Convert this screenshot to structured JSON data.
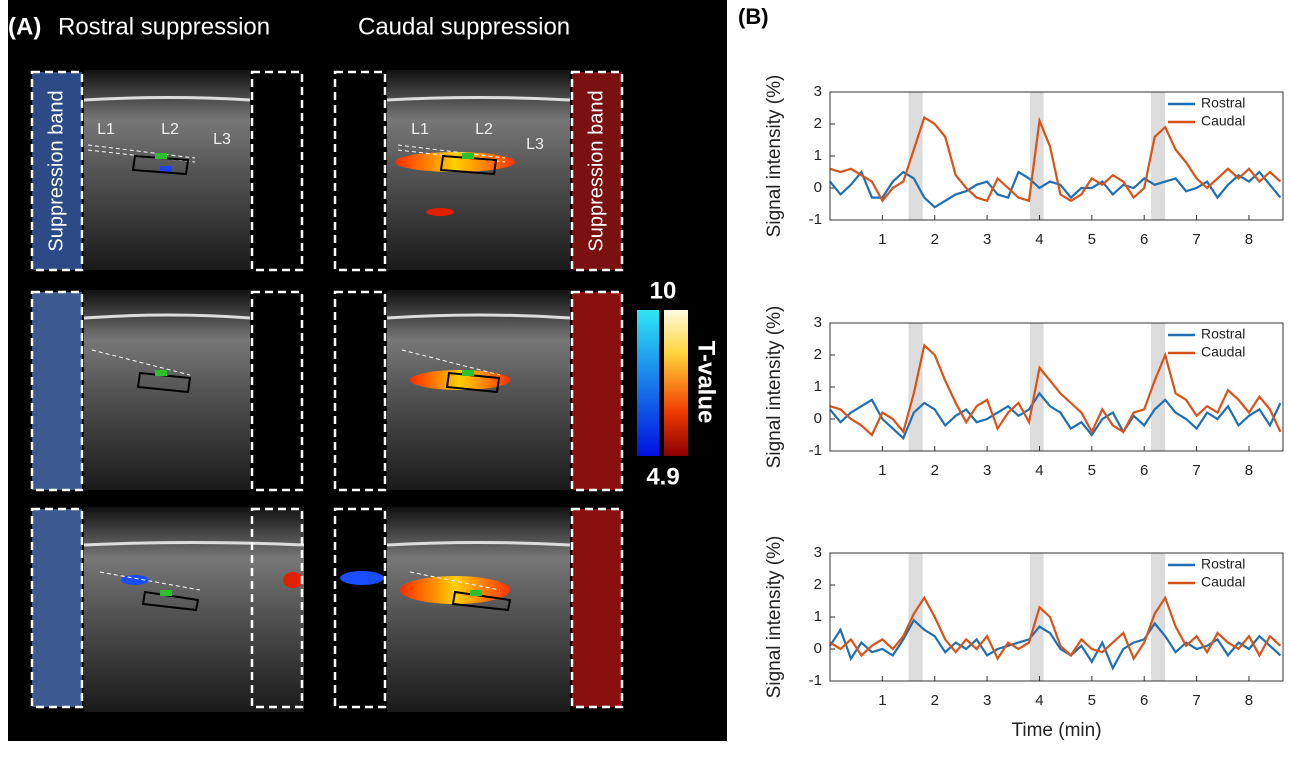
{
  "panel_a": {
    "label": "(A)",
    "titles": [
      "Rostral suppression",
      "Caudal suppression"
    ],
    "band_labels": [
      "Suppression band",
      "Suppression band"
    ],
    "levels": [
      [
        "L1",
        "L2",
        "L3"
      ],
      [
        "L1",
        "L2",
        "L3"
      ]
    ],
    "colorbar": {
      "label": "T-value",
      "range": [
        4.9,
        10
      ]
    }
  },
  "panel_b_label": "(B)",
  "chart_data": [
    {
      "type": "line",
      "ylabel": "Signal intensity (%)",
      "xlim": [
        0,
        8.65
      ],
      "ylim": [
        -1,
        3
      ],
      "xticks": [
        1,
        2,
        3,
        4,
        5,
        6,
        7,
        8
      ],
      "yticks": [
        -1,
        0,
        1,
        2,
        3
      ],
      "legend": "upper right",
      "shaded": [
        [
          1.5,
          1.77
        ],
        [
          3.82,
          4.08
        ],
        [
          6.13,
          6.4
        ]
      ],
      "x": [
        0,
        0.2,
        0.4,
        0.6,
        0.8,
        1.0,
        1.2,
        1.4,
        1.6,
        1.8,
        2.0,
        2.2,
        2.4,
        2.6,
        2.8,
        3.0,
        3.2,
        3.4,
        3.6,
        3.8,
        4.0,
        4.2,
        4.4,
        4.6,
        4.8,
        5.0,
        5.2,
        5.4,
        5.6,
        5.8,
        6.0,
        6.2,
        6.4,
        6.6,
        6.8,
        7.0,
        7.2,
        7.4,
        7.6,
        7.8,
        8.0,
        8.2,
        8.4,
        8.6
      ],
      "series": [
        {
          "name": "Rostral",
          "color": "#1f6fb5",
          "values": [
            0.2,
            -0.2,
            0.1,
            0.5,
            -0.3,
            -0.3,
            0.2,
            0.5,
            0.3,
            -0.3,
            -0.6,
            -0.4,
            -0.2,
            -0.1,
            0.1,
            0.2,
            -0.2,
            -0.3,
            0.5,
            0.3,
            0.0,
            0.2,
            0.1,
            -0.3,
            0.0,
            0.0,
            0.2,
            -0.2,
            0.1,
            0.0,
            0.3,
            0.1,
            0.2,
            0.3,
            -0.1,
            0.0,
            0.2,
            -0.3,
            0.1,
            0.4,
            0.2,
            0.5,
            0.1,
            -0.3
          ]
        },
        {
          "name": "Caudal",
          "color": "#d95319",
          "values": [
            0.6,
            0.5,
            0.6,
            0.4,
            0.2,
            -0.4,
            0.0,
            0.2,
            1.2,
            2.2,
            2.0,
            1.6,
            0.4,
            0.0,
            -0.3,
            -0.4,
            0.3,
            0.0,
            -0.3,
            -0.4,
            2.1,
            1.3,
            -0.2,
            -0.4,
            -0.2,
            0.3,
            0.1,
            0.4,
            0.2,
            -0.3,
            0.0,
            1.6,
            1.9,
            1.2,
            0.8,
            0.3,
            0.0,
            0.3,
            0.6,
            0.3,
            0.6,
            0.2,
            0.5,
            0.2
          ]
        }
      ]
    },
    {
      "type": "line",
      "ylabel": "Signal intensity (%)",
      "xlim": [
        0,
        8.65
      ],
      "ylim": [
        -1,
        3
      ],
      "xticks": [
        1,
        2,
        3,
        4,
        5,
        6,
        7,
        8
      ],
      "yticks": [
        -1,
        0,
        1,
        2,
        3
      ],
      "legend": "upper right",
      "shaded": [
        [
          1.5,
          1.77
        ],
        [
          3.82,
          4.08
        ],
        [
          6.13,
          6.4
        ]
      ],
      "x": [
        0,
        0.2,
        0.4,
        0.6,
        0.8,
        1.0,
        1.2,
        1.4,
        1.6,
        1.8,
        2.0,
        2.2,
        2.4,
        2.6,
        2.8,
        3.0,
        3.2,
        3.4,
        3.6,
        3.8,
        4.0,
        4.2,
        4.4,
        4.6,
        4.8,
        5.0,
        5.2,
        5.4,
        5.6,
        5.8,
        6.0,
        6.2,
        6.4,
        6.6,
        6.8,
        7.0,
        7.2,
        7.4,
        7.6,
        7.8,
        8.0,
        8.2,
        8.4,
        8.6
      ],
      "series": [
        {
          "name": "Rostral",
          "color": "#1f6fb5",
          "values": [
            0.3,
            -0.1,
            0.2,
            0.4,
            0.6,
            0.0,
            -0.3,
            -0.6,
            0.2,
            0.5,
            0.3,
            -0.2,
            0.1,
            0.3,
            -0.1,
            0.0,
            0.2,
            0.4,
            0.1,
            0.3,
            0.8,
            0.4,
            0.2,
            -0.3,
            -0.1,
            -0.5,
            0.0,
            0.2,
            -0.4,
            0.1,
            -0.2,
            0.3,
            0.6,
            0.2,
            0.0,
            -0.3,
            0.2,
            0.0,
            0.4,
            -0.2,
            0.1,
            0.3,
            -0.2,
            0.5
          ]
        },
        {
          "name": "Caudal",
          "color": "#d95319",
          "values": [
            0.4,
            0.3,
            0.0,
            -0.2,
            -0.5,
            0.2,
            0.0,
            -0.4,
            0.8,
            2.3,
            2.0,
            1.2,
            0.5,
            -0.1,
            0.4,
            0.6,
            -0.3,
            0.2,
            0.5,
            -0.1,
            1.6,
            1.2,
            0.8,
            0.5,
            0.2,
            -0.4,
            0.3,
            -0.2,
            -0.4,
            0.2,
            0.3,
            1.2,
            2.0,
            0.8,
            0.6,
            0.1,
            0.4,
            0.2,
            0.9,
            0.6,
            0.2,
            0.7,
            0.3,
            -0.4
          ]
        }
      ]
    },
    {
      "type": "line",
      "ylabel": "Signal intensity (%)",
      "xlabel": "Time (min)",
      "xlim": [
        0,
        8.65
      ],
      "ylim": [
        -1,
        3
      ],
      "xticks": [
        1,
        2,
        3,
        4,
        5,
        6,
        7,
        8
      ],
      "yticks": [
        -1,
        0,
        1,
        2,
        3
      ],
      "legend": "upper right",
      "shaded": [
        [
          1.5,
          1.77
        ],
        [
          3.82,
          4.08
        ],
        [
          6.13,
          6.4
        ]
      ],
      "x": [
        0,
        0.2,
        0.4,
        0.6,
        0.8,
        1.0,
        1.2,
        1.4,
        1.6,
        1.8,
        2.0,
        2.2,
        2.4,
        2.6,
        2.8,
        3.0,
        3.2,
        3.4,
        3.6,
        3.8,
        4.0,
        4.2,
        4.4,
        4.6,
        4.8,
        5.0,
        5.2,
        5.4,
        5.6,
        5.8,
        6.0,
        6.2,
        6.4,
        6.6,
        6.8,
        7.0,
        7.2,
        7.4,
        7.6,
        7.8,
        8.0,
        8.2,
        8.4,
        8.6
      ],
      "series": [
        {
          "name": "Rostral",
          "color": "#1f6fb5",
          "values": [
            0.1,
            0.6,
            -0.3,
            0.2,
            -0.1,
            0.0,
            -0.2,
            0.3,
            0.9,
            0.6,
            0.4,
            -0.1,
            0.2,
            0.0,
            0.3,
            -0.2,
            0.0,
            0.1,
            0.2,
            0.3,
            0.7,
            0.5,
            0.0,
            -0.2,
            0.1,
            -0.4,
            0.2,
            -0.6,
            0.0,
            0.2,
            0.3,
            0.8,
            0.4,
            -0.1,
            0.2,
            0.0,
            0.1,
            0.3,
            -0.2,
            0.2,
            0.0,
            0.4,
            0.1,
            -0.2
          ]
        },
        {
          "name": "Caudal",
          "color": "#d95319",
          "values": [
            0.2,
            0.0,
            0.3,
            -0.2,
            0.1,
            0.3,
            0.0,
            0.4,
            1.1,
            1.6,
            1.0,
            0.3,
            -0.1,
            0.3,
            0.0,
            0.4,
            -0.3,
            0.2,
            0.0,
            0.2,
            1.3,
            1.0,
            0.1,
            -0.2,
            0.3,
            0.0,
            -0.1,
            0.2,
            0.5,
            -0.3,
            0.2,
            1.1,
            1.6,
            0.7,
            0.1,
            0.4,
            -0.1,
            0.5,
            0.2,
            0.0,
            0.4,
            -0.2,
            0.4,
            0.1
          ]
        }
      ]
    }
  ]
}
